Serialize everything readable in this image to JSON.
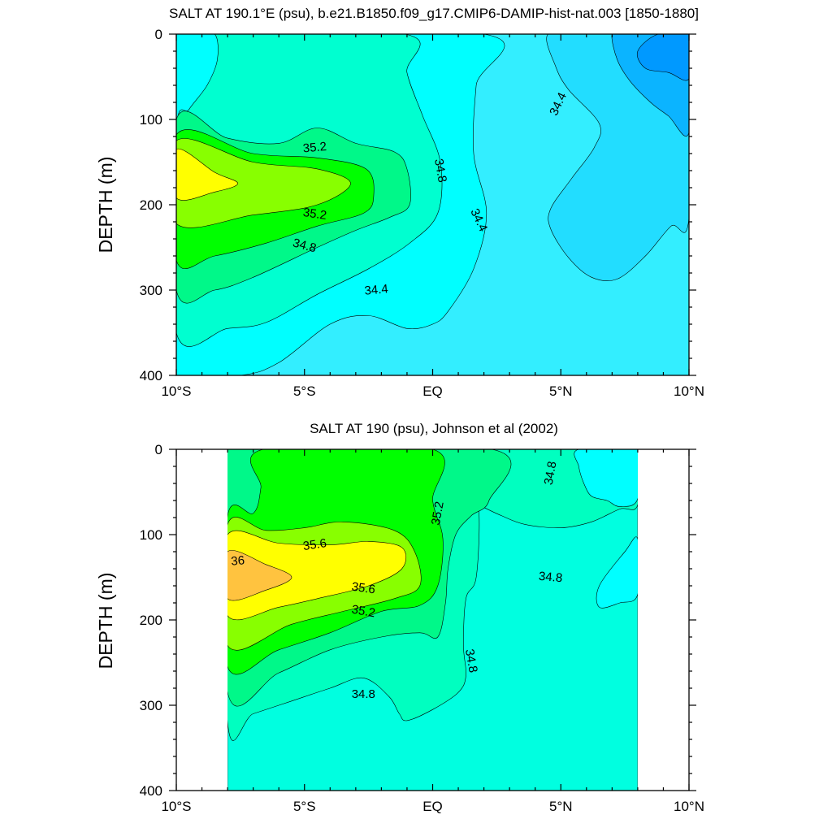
{
  "chart_data": [
    {
      "type": "contour",
      "title": "SALT AT 190.1°E (psu), b.e21.B1850.f09_g17.CMIP6-DAMIP-hist-nat.003 [1850-1880]",
      "ylabel": "DEPTH (m)",
      "xlim": [
        -10,
        10
      ],
      "ylim": [
        400,
        0
      ],
      "x_tick_values": [
        -10,
        -5,
        0,
        5,
        10
      ],
      "x_tick_labels": [
        "10°S",
        "5°S",
        "EQ",
        "5°N",
        "10°N"
      ],
      "y_tick_values": [
        0,
        100,
        200,
        300,
        400
      ],
      "y_tick_labels": [
        "0",
        "100",
        "200",
        "300",
        "400"
      ],
      "data_lon_range": [
        -10,
        10
      ],
      "background_color": "#33EEFF",
      "fill_levels": [
        {
          "color": "#22DDFF",
          "points": [
            [
              6,
              0
            ],
            [
              10,
              0
            ],
            [
              10,
              215
            ],
            [
              9.3,
              225
            ],
            [
              8.3,
              260
            ],
            [
              7.2,
              287
            ],
            [
              6.2,
              285
            ],
            [
              5.3,
              262
            ],
            [
              4.6,
              228
            ],
            [
              4.6,
              205
            ],
            [
              5.4,
              170
            ],
            [
              6.3,
              133
            ],
            [
              6.5,
              105
            ],
            [
              5.3,
              65
            ],
            [
              4.8,
              38
            ],
            [
              4.5,
              0
            ]
          ]
        },
        {
          "color": "#0BB4FF",
          "points": [
            [
              7.5,
              0
            ],
            [
              10,
              0
            ],
            [
              10,
              115
            ],
            [
              9.2,
              96
            ],
            [
              8.5,
              80
            ],
            [
              7.7,
              55
            ],
            [
              7.2,
              30
            ],
            [
              7.0,
              0
            ]
          ]
        },
        {
          "color": "#0099FF",
          "points": [
            [
              8.8,
              0
            ],
            [
              10,
              0
            ],
            [
              10,
              52
            ],
            [
              9.2,
              45
            ],
            [
              8.3,
              40
            ],
            [
              8.0,
              20
            ]
          ]
        },
        {
          "color": "#00FFFF",
          "points": [
            [
              -10,
              0
            ],
            [
              2.0,
              0
            ],
            [
              1.7,
              60
            ],
            [
              1.6,
              140
            ],
            [
              2.1,
              210
            ],
            [
              1.6,
              275
            ],
            [
              0.6,
              325
            ],
            [
              0,
              340
            ],
            [
              -1.0,
              345
            ],
            [
              -2.5,
              330
            ],
            [
              -4.0,
              340
            ],
            [
              -6.0,
              385
            ],
            [
              -7.5,
              400
            ],
            [
              -10,
              400
            ]
          ]
        },
        {
          "color": "#00FFD0",
          "points": [
            [
              -9.3,
              0
            ],
            [
              -1.1,
              0
            ],
            [
              -1.0,
              45
            ],
            [
              -0.4,
              95
            ],
            [
              0.3,
              150
            ],
            [
              0.2,
              210
            ],
            [
              -0.9,
              245
            ],
            [
              -2.5,
              275
            ],
            [
              -4.5,
              305
            ],
            [
              -6.5,
              338
            ],
            [
              -8.0,
              345
            ],
            [
              -10,
              350
            ],
            [
              -10,
              115
            ],
            [
              -9.5,
              88
            ],
            [
              -8.8,
              60
            ],
            [
              -8.4,
              30
            ],
            [
              -8.5,
              0
            ]
          ]
        },
        {
          "color": "#00F889",
          "points": [
            [
              -10,
              100
            ],
            [
              -8.0,
              122
            ],
            [
              -6.0,
              128
            ],
            [
              -4.5,
              110
            ],
            [
              -3.0,
              128
            ],
            [
              -1.5,
              138
            ],
            [
              -1.0,
              158
            ],
            [
              -0.9,
              200
            ],
            [
              -1.7,
              215
            ],
            [
              -3.0,
              230
            ],
            [
              -4.5,
              250
            ],
            [
              -7.0,
              285
            ],
            [
              -8.5,
              300
            ],
            [
              -10,
              300
            ]
          ]
        },
        {
          "color": "#00FF00",
          "points": [
            [
              -10,
              118
            ],
            [
              -7.0,
              140
            ],
            [
              -4.5,
              145
            ],
            [
              -2.6,
              158
            ],
            [
              -2.3,
              190
            ],
            [
              -2.7,
              210
            ],
            [
              -4.5,
              225
            ],
            [
              -6.5,
              245
            ],
            [
              -8.5,
              260
            ],
            [
              -10,
              265
            ]
          ]
        },
        {
          "color": "#88FF00",
          "points": [
            [
              -10,
              125
            ],
            [
              -7.0,
              150
            ],
            [
              -4.5,
              158
            ],
            [
              -3.2,
              175
            ],
            [
              -4.5,
              200
            ],
            [
              -7.0,
              212
            ],
            [
              -10,
              222
            ]
          ]
        },
        {
          "color": "#FFFF00",
          "points": [
            [
              -10,
              135
            ],
            [
              -8.5,
              162
            ],
            [
              -7.6,
              175
            ],
            [
              -8.5,
              185
            ],
            [
              -10,
              192
            ]
          ]
        }
      ],
      "contour_labels": [
        {
          "text": "35.2",
          "x": -4.6,
          "y": 133,
          "angle": 5
        },
        {
          "text": "35.2",
          "x": -4.6,
          "y": 211,
          "angle": -8
        },
        {
          "text": "34.8",
          "x": 0.3,
          "y": 160,
          "angle": -80
        },
        {
          "text": "34.8",
          "x": -5.0,
          "y": 248,
          "angle": -15
        },
        {
          "text": "34.4",
          "x": 4.9,
          "y": 82,
          "angle": 65
        },
        {
          "text": "34.4",
          "x": 1.8,
          "y": 218,
          "angle": -65
        },
        {
          "text": "34.4",
          "x": -2.2,
          "y": 300,
          "angle": 5
        }
      ]
    },
    {
      "type": "contour",
      "title": "SALT AT 190 (psu), Johnson et al (2002)",
      "ylabel": "DEPTH (m)",
      "xlim": [
        -10,
        10
      ],
      "ylim": [
        400,
        0
      ],
      "x_tick_values": [
        -10,
        -5,
        0,
        5,
        10
      ],
      "x_tick_labels": [
        "10°S",
        "5°S",
        "EQ",
        "5°N",
        "10°N"
      ],
      "y_tick_values": [
        0,
        100,
        200,
        300,
        400
      ],
      "y_tick_labels": [
        "0",
        "100",
        "200",
        "300",
        "400"
      ],
      "data_lon_range": [
        -8,
        8
      ],
      "background_color": "#00FFE0",
      "fill_levels": [
        {
          "color": "#00FFC0",
          "points": [
            [
              -8,
              0
            ],
            [
              8,
              0
            ],
            [
              8,
              65
            ],
            [
              7.3,
              70
            ],
            [
              6.2,
              85
            ],
            [
              5.0,
              92
            ],
            [
              3.6,
              88
            ],
            [
              2.7,
              78
            ],
            [
              1.8,
              65
            ],
            [
              1.4,
              58
            ],
            [
              1.8,
              72
            ],
            [
              1.7,
              150
            ],
            [
              1.3,
              175
            ],
            [
              1.2,
              230
            ],
            [
              1.3,
              265
            ],
            [
              1.0,
              285
            ],
            [
              0,
              305
            ],
            [
              -1.0,
              318
            ],
            [
              -1.3,
              310
            ],
            [
              -1.7,
              290
            ],
            [
              -2.7,
              268
            ],
            [
              -4.0,
              280
            ],
            [
              -5.5,
              295
            ],
            [
              -7.0,
              310
            ],
            [
              -8,
              320
            ]
          ]
        },
        {
          "color": "#00FFFF",
          "points": [
            [
              5.7,
              0
            ],
            [
              8,
              0
            ],
            [
              8,
              58
            ],
            [
              7.3,
              67
            ],
            [
              6.8,
              60
            ],
            [
              6.2,
              55
            ],
            [
              5.9,
              40
            ],
            [
              5.7,
              20
            ]
          ]
        },
        {
          "color": "#00FFFF",
          "points": [
            [
              8,
              105
            ],
            [
              7.5,
              120
            ],
            [
              6.5,
              160
            ],
            [
              6.5,
              185
            ],
            [
              7.3,
              180
            ],
            [
              8,
              170
            ]
          ]
        },
        {
          "color": "#00F889",
          "points": [
            [
              -8,
              0
            ],
            [
              2.3,
              0
            ],
            [
              2.2,
              60
            ],
            [
              1.5,
              78
            ],
            [
              0.9,
              100
            ],
            [
              0.6,
              140
            ],
            [
              0.5,
              180
            ],
            [
              0.2,
              220
            ],
            [
              -0.5,
              215
            ],
            [
              -2.0,
              220
            ],
            [
              -4.0,
              235
            ],
            [
              -6.0,
              262
            ],
            [
              -8,
              285
            ]
          ]
        },
        {
          "color": "#00FF00",
          "points": [
            [
              -8,
              78
            ],
            [
              -7.0,
              75
            ],
            [
              -6.7,
              45
            ],
            [
              -6.6,
              0
            ],
            [
              0,
              0
            ],
            [
              0.0,
              60
            ],
            [
              0.4,
              105
            ],
            [
              0.2,
              160
            ],
            [
              -0.5,
              183
            ],
            [
              -2.0,
              190
            ],
            [
              -4.0,
              215
            ],
            [
              -6.0,
              235
            ],
            [
              -8,
              255
            ]
          ]
        },
        {
          "color": "#88FF00",
          "points": [
            [
              -8,
              88
            ],
            [
              -6.5,
              95
            ],
            [
              -5.0,
              92
            ],
            [
              -3.5,
              85
            ],
            [
              -1.5,
              95
            ],
            [
              -0.7,
              120
            ],
            [
              -0.5,
              160
            ],
            [
              -1.5,
              175
            ],
            [
              -3.5,
              190
            ],
            [
              -5.5,
              205
            ],
            [
              -8,
              230
            ]
          ]
        },
        {
          "color": "#FFFF00",
          "points": [
            [
              -8,
              100
            ],
            [
              -6.0,
              110
            ],
            [
              -4.0,
              112
            ],
            [
              -2.5,
              108
            ],
            [
              -1.2,
              115
            ],
            [
              -1.2,
              140
            ],
            [
              -2.5,
              160
            ],
            [
              -4.5,
              175
            ],
            [
              -6.0,
              185
            ],
            [
              -8,
              195
            ]
          ]
        },
        {
          "color": "#FFC33F",
          "points": [
            [
              -8,
              120
            ],
            [
              -6.5,
              135
            ],
            [
              -5.5,
              150
            ],
            [
              -6.5,
              165
            ],
            [
              -8,
              175
            ]
          ]
        }
      ],
      "contour_labels": [
        {
          "text": "35.6",
          "x": -4.6,
          "y": 112,
          "angle": 8
        },
        {
          "text": "36",
          "x": -7.6,
          "y": 131,
          "angle": 5
        },
        {
          "text": "35.6",
          "x": -2.7,
          "y": 163,
          "angle": -8
        },
        {
          "text": "35.2",
          "x": -2.7,
          "y": 190,
          "angle": -10
        },
        {
          "text": "35.2",
          "x": 0.2,
          "y": 75,
          "angle": 80
        },
        {
          "text": "34.8",
          "x": 4.6,
          "y": 28,
          "angle": 80
        },
        {
          "text": "34.8",
          "x": 4.6,
          "y": 150,
          "angle": -5
        },
        {
          "text": "34.8",
          "x": 1.5,
          "y": 248,
          "angle": -80
        },
        {
          "text": "34.8",
          "x": -2.7,
          "y": 287,
          "angle": 0
        }
      ]
    }
  ]
}
